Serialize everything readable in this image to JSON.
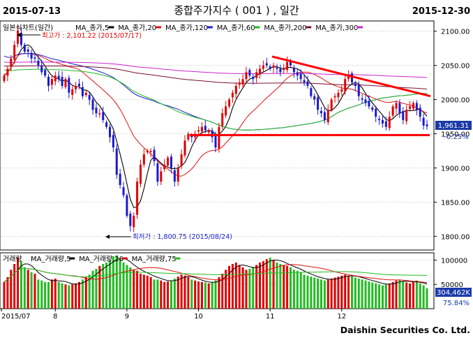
{
  "header": {
    "start_date": "2015-07-13",
    "title": "종합주가지수 ( 001 ) , 일간",
    "end_date": "2015-12-30"
  },
  "chart_data": {
    "type": "candlestick",
    "price_panel": {
      "legend": {
        "chart_name": "일본식차트(일간)",
        "items": [
          {
            "label": "MA_종가,5",
            "color": "#000000"
          },
          {
            "label": "MA_종가,20",
            "color": "#e01010"
          },
          {
            "label": "MA_종가,120",
            "color": "#1a1ad0"
          },
          {
            "label": "MA_종가,60",
            "color": "#22bb22"
          },
          {
            "label": "MA_종가,200",
            "color": "#7a1030"
          },
          {
            "label": "MA_종가,300",
            "color": "#d020d0"
          }
        ]
      },
      "ylim": [
        1780,
        2115
      ],
      "yticks": [
        "2100.00",
        "2050.00",
        "2000.00",
        "1950.00",
        "1900.00",
        "1850.00",
        "1800.00"
      ],
      "high_annotation": "최고가 : 2,101.22 (2015/07/17)",
      "low_annotation": "최저가 : 1,800.75 (2015/08/24)",
      "last_price": "1,961.31",
      "last_change": "-0.25%",
      "trendlines": [
        {
          "from": [
            "2015/10/30",
            2063
          ],
          "to": [
            "2015/12/30",
            2005
          ],
          "color": "#ff0000"
        },
        {
          "from": [
            "2015/10/01",
            1948
          ],
          "to": [
            "2015/12/30",
            1948
          ],
          "color": "#ff0000"
        }
      ],
      "close": [
        2035,
        2045,
        2060,
        2080,
        2101,
        2080,
        2070,
        2070,
        2060,
        2060,
        2050,
        2040,
        2035,
        2020,
        2030,
        2035,
        2030,
        2020,
        2030,
        2010,
        2015,
        2020,
        2020,
        2005,
        2010,
        2000,
        1985,
        1980,
        1980,
        1970,
        1960,
        1945,
        1930,
        1890,
        1875,
        1860,
        1830,
        1815,
        1830,
        1880,
        1905,
        1920,
        1925,
        1925,
        1910,
        1880,
        1895,
        1905,
        1915,
        1900,
        1880,
        1900,
        1920,
        1940,
        1950,
        1945,
        1950,
        1955,
        1960,
        1955,
        1955,
        1945,
        1930,
        1960,
        1980,
        1990,
        2000,
        2010,
        2020,
        2025,
        2030,
        2040,
        2035,
        2030,
        2040,
        2045,
        2050,
        2050,
        2045,
        2050,
        2045,
        2040,
        2045,
        2055,
        2050,
        2040,
        2035,
        2030,
        2025,
        2020,
        2005,
        2000,
        1985,
        1980,
        1970,
        1985,
        2000,
        2005,
        2010,
        2015,
        2030,
        2035,
        2025,
        2020,
        2005,
        2000,
        1995,
        1990,
        1985,
        1975,
        1970,
        1965,
        1960,
        1975,
        1990,
        1995,
        1980,
        1970,
        1985,
        1990,
        1995,
        1985,
        1975,
        1962,
        1961
      ]
    },
    "volume_panel": {
      "legend": {
        "label": "거래량",
        "items": [
          {
            "label": "MA_거래량,5",
            "color": "#000000"
          },
          {
            "label": "MA_거래량,20",
            "color": "#e01010"
          },
          {
            "label": "MA_거래량,75",
            "color": "#22bb22"
          }
        ]
      },
      "ylim": [
        0,
        115000
      ],
      "yticks": [
        "100000",
        "50000"
      ],
      "last_volume": "304,462K",
      "last_ratio": "75.84%",
      "volumes": [
        55,
        65,
        80,
        92,
        105,
        98,
        85,
        80,
        75,
        72,
        60,
        58,
        55,
        55,
        60,
        62,
        55,
        52,
        50,
        48,
        50,
        52,
        55,
        60,
        65,
        70,
        78,
        82,
        88,
        92,
        95,
        100,
        108,
        110,
        102,
        95,
        90,
        85,
        80,
        78,
        72,
        70,
        68,
        65,
        60,
        60,
        58,
        55,
        56,
        58,
        62,
        66,
        70,
        68,
        65,
        60,
        58,
        56,
        55,
        54,
        52,
        54,
        58,
        65,
        72,
        80,
        88,
        92,
        95,
        90,
        85,
        80,
        82,
        86,
        90,
        95,
        98,
        102,
        105,
        100,
        95,
        92,
        90,
        88,
        85,
        80,
        78,
        75,
        70,
        68,
        66,
        64,
        62,
        60,
        58,
        60,
        62,
        64,
        66,
        68,
        70,
        68,
        66,
        64,
        62,
        60,
        58,
        56,
        54,
        52,
        50,
        48,
        50,
        52,
        55,
        58,
        60,
        56,
        54,
        52,
        55,
        58,
        52,
        48,
        42
      ]
    },
    "x_labels": [
      "2015/07",
      "8",
      "9",
      "10",
      "11",
      "12"
    ],
    "footer": "Daishin Securities Co. Ltd."
  }
}
